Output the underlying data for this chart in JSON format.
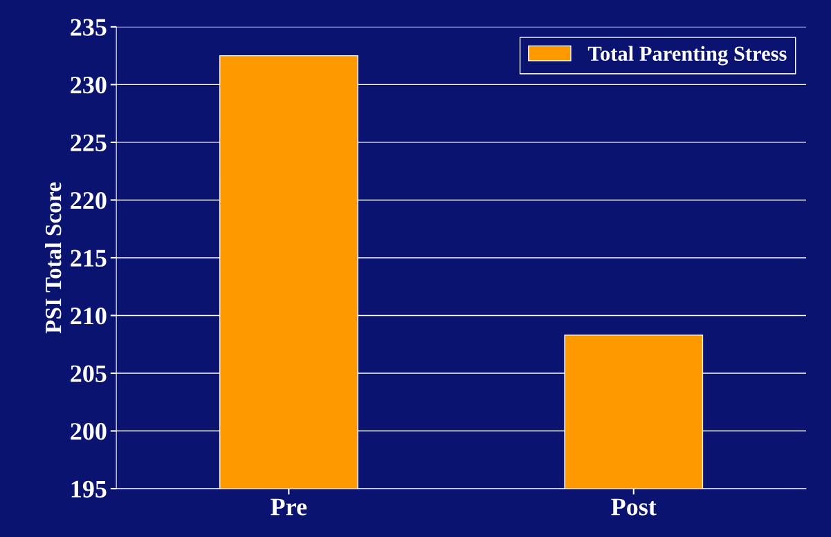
{
  "chart_data": {
    "type": "bar",
    "ylabel": "PSI Total Score",
    "categories": [
      "Pre",
      "Post"
    ],
    "series": [
      {
        "name": "Total Parenting Stress",
        "color": "#ff9900",
        "values": [
          232.5,
          208.3
        ]
      }
    ],
    "ylim": [
      195,
      235
    ],
    "yticks": [
      195,
      200,
      205,
      210,
      215,
      220,
      225,
      230,
      235
    ],
    "grid": "y",
    "legend": "top right"
  }
}
